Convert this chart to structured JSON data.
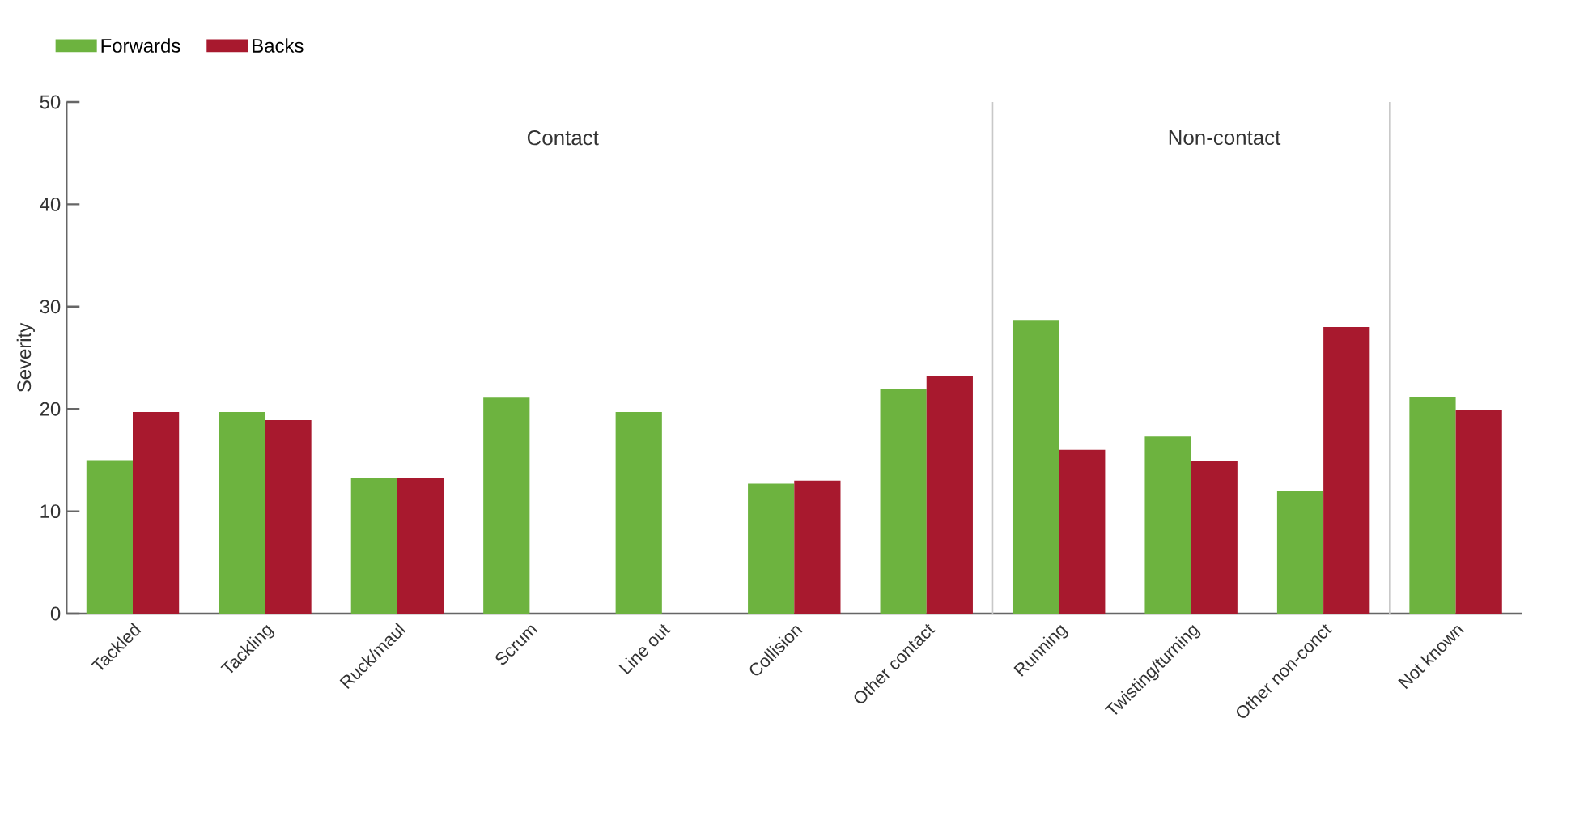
{
  "chart_data": {
    "type": "bar",
    "ylabel": "Severity",
    "categories": [
      "Tackled",
      "Tackling",
      "Ruck/maul",
      "Scrum",
      "Line out",
      "Collision",
      "Other contact",
      "Running",
      "Twisting/turning",
      "Other non-conct",
      "Not known"
    ],
    "series": [
      {
        "name": "Forwards",
        "color": "#6db33f",
        "values": [
          15.0,
          19.7,
          13.3,
          21.1,
          19.7,
          12.7,
          22.0,
          28.7,
          17.3,
          12.0,
          21.2
        ]
      },
      {
        "name": "Backs",
        "color": "#a8192e",
        "values": [
          19.7,
          18.9,
          13.3,
          null,
          null,
          13.0,
          23.2,
          16.0,
          14.9,
          28.0,
          19.9
        ]
      }
    ],
    "ylim": [
      0,
      50
    ],
    "yticks": [
      0,
      10,
      20,
      30,
      40,
      50
    ],
    "annotations": [
      "Contact",
      "Non-contact"
    ],
    "legend": "top left",
    "grid": false
  }
}
